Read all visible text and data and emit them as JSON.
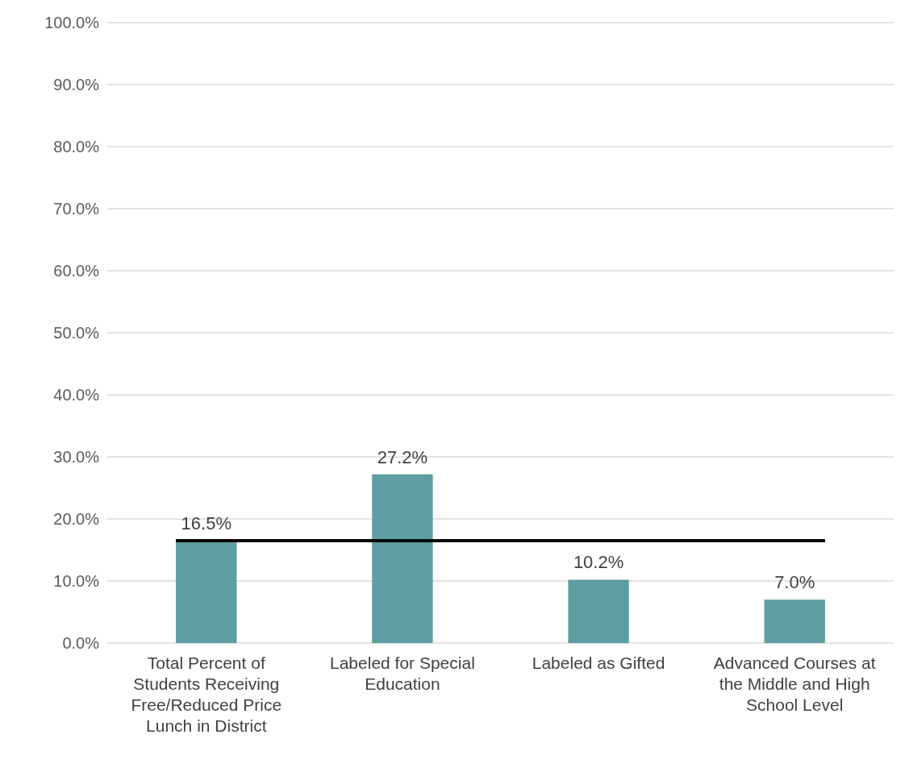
{
  "chart_data": {
    "type": "bar",
    "categories": [
      "Total Percent of Students Receiving Free/Reduced Price Lunch in District",
      "Labeled for Special Education",
      "Labeled as Gifted",
      "Advanced Courses at the Middle and High School Level"
    ],
    "values": [
      16.5,
      27.2,
      10.2,
      7.0
    ],
    "color": "#5f9ea0",
    "value_labels": [
      "16.5%",
      "27.2%",
      "10.2%",
      "7.0%"
    ],
    "ylim": [
      0,
      100
    ],
    "yticks": [
      {
        "value": 0,
        "label": "0.0%"
      },
      {
        "value": 10,
        "label": "10.0%"
      },
      {
        "value": 20,
        "label": "20.0%"
      },
      {
        "value": 30,
        "label": "30.0%"
      },
      {
        "value": 40,
        "label": "40.0%"
      },
      {
        "value": 50,
        "label": "50.0%"
      },
      {
        "value": 60,
        "label": "60.0%"
      },
      {
        "value": 70,
        "label": "70.0%"
      },
      {
        "value": 80,
        "label": "80.0%"
      },
      {
        "value": 90,
        "label": "90.0%"
      },
      {
        "value": 100,
        "label": "100.0%"
      }
    ],
    "grid": "y",
    "ref_lines": [
      {
        "axis": "y",
        "value": 16.5,
        "color": "#000000"
      }
    ]
  }
}
